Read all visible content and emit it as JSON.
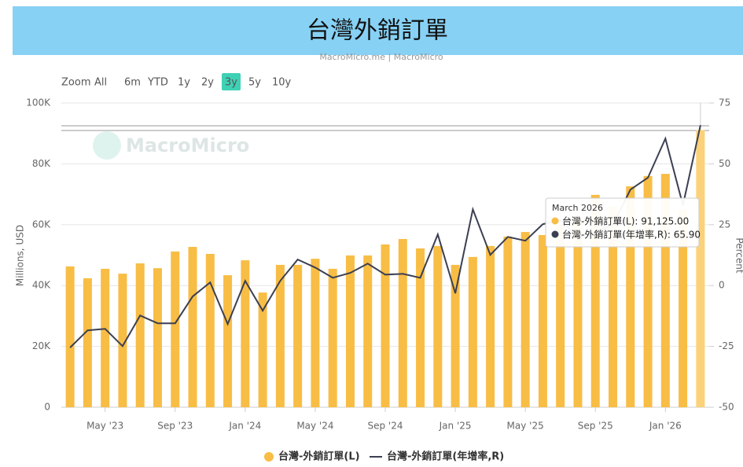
{
  "chart_data": {
    "type": "bar_line",
    "title": "台灣外銷訂單",
    "source": "MacroMicro.me | MacroMicro",
    "watermark": "MacroMicro",
    "range_buttons": [
      "Zoom",
      "All",
      "6m",
      "YTD",
      "1y",
      "2y",
      "3y",
      "5y",
      "10y"
    ],
    "active_button": 6,
    "ylabel": "Millions, USD",
    "y2label": "Percent",
    "categories": [
      null,
      null,
      "May '23",
      null,
      null,
      null,
      "Sep '23",
      null,
      null,
      null,
      "Jan '24",
      null,
      null,
      null,
      "May '24",
      null,
      null,
      null,
      "Sep '24",
      null,
      null,
      null,
      "Jan '25",
      null,
      null,
      null,
      "May '25",
      null,
      null,
      null,
      "Sep '25",
      null,
      null,
      null,
      "Jan '26",
      null,
      null
    ],
    "series": [
      {
        "name": "台灣-外銷訂單(L)",
        "color": "#f8bd45",
        "axis": "y",
        "values": [
          46.3,
          42.4,
          45.5,
          43.9,
          47.3,
          45.7,
          51.2,
          52.7,
          50.4,
          43.4,
          48.3,
          37.7,
          46.8,
          46.8,
          48.8,
          45.5,
          49.9,
          49.9,
          53.5,
          55.3,
          52.2,
          53.0,
          46.8,
          49.4,
          53.0,
          56.1,
          57.6,
          56.6,
          60.0,
          62.0,
          69.8,
          66.0,
          72.6,
          76.0,
          76.7,
          65.0,
          91.125
        ]
      },
      {
        "name": "台灣-外銷訂單(年增率,R)",
        "color": "#3b3f52",
        "axis": "y2",
        "values": [
          -25.5,
          -18.4,
          -17.8,
          -24.9,
          -12.3,
          -15.5,
          -15.5,
          -4.5,
          1.3,
          -15.8,
          1.9,
          -10.3,
          1.9,
          10.7,
          7.4,
          3.2,
          5.2,
          9.0,
          4.5,
          4.8,
          3.2,
          21.0,
          -3.2,
          31.3,
          12.6,
          20.0,
          18.4,
          25.2,
          27.0,
          20.0,
          22.0,
          25.0,
          39.4,
          44.3,
          60.4,
          33.0,
          65.9
        ]
      }
    ],
    "ylim": [
      0,
      100
    ],
    "yticks": [
      {
        "value": 0,
        "label": "0"
      },
      {
        "value": 20,
        "label": "20K"
      },
      {
        "value": 40,
        "label": "40K"
      },
      {
        "value": 60,
        "label": "60K"
      },
      {
        "value": 80,
        "label": "80K"
      },
      {
        "value": 100,
        "label": "100K"
      }
    ],
    "y2lim": [
      -50,
      75
    ],
    "y2ticks": [
      -50,
      -25,
      0,
      25,
      50,
      75
    ],
    "grid": true,
    "tooltip": {
      "title": "March 2026",
      "index": 36,
      "items": [
        {
          "text": "台灣-外銷訂單(L): 91,125.00",
          "value": 91.125
        },
        {
          "text": "台灣-外銷訂單(年增率,R): 65.90",
          "value": 65.9
        }
      ]
    }
  }
}
